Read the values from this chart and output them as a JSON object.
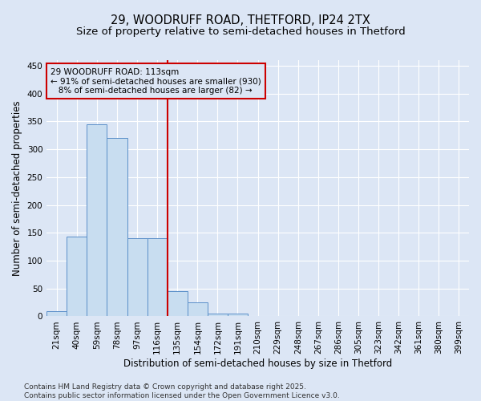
{
  "title1": "29, WOODRUFF ROAD, THETFORD, IP24 2TX",
  "title2": "Size of property relative to semi-detached houses in Thetford",
  "xlabel": "Distribution of semi-detached houses by size in Thetford",
  "ylabel": "Number of semi-detached properties",
  "categories": [
    "21sqm",
    "40sqm",
    "59sqm",
    "78sqm",
    "97sqm",
    "116sqm",
    "135sqm",
    "154sqm",
    "172sqm",
    "191sqm",
    "210sqm",
    "229sqm",
    "248sqm",
    "267sqm",
    "286sqm",
    "305sqm",
    "323sqm",
    "342sqm",
    "361sqm",
    "380sqm",
    "399sqm"
  ],
  "values": [
    10,
    143,
    345,
    320,
    140,
    140,
    45,
    25,
    5,
    5,
    0,
    0,
    0,
    0,
    0,
    0,
    0,
    0,
    0,
    0,
    0
  ],
  "bar_color": "#c8ddf0",
  "bar_edge_color": "#5b8fc9",
  "vline_x_index": 5,
  "vline_color": "#cc0000",
  "annotation_line1": "29 WOODRUFF ROAD: 113sqm",
  "annotation_line2": "← 91% of semi-detached houses are smaller (930)",
  "annotation_line3": "   8% of semi-detached houses are larger (82) →",
  "annotation_box_color": "#cc0000",
  "ylim": [
    0,
    460
  ],
  "yticks": [
    0,
    50,
    100,
    150,
    200,
    250,
    300,
    350,
    400,
    450
  ],
  "background_color": "#dce6f5",
  "grid_color": "#ffffff",
  "footer_text": "Contains HM Land Registry data © Crown copyright and database right 2025.\nContains public sector information licensed under the Open Government Licence v3.0.",
  "title_fontsize": 10.5,
  "subtitle_fontsize": 9.5,
  "tick_fontsize": 7.5,
  "label_fontsize": 8.5,
  "annotation_fontsize": 7.5,
  "footer_fontsize": 6.5
}
